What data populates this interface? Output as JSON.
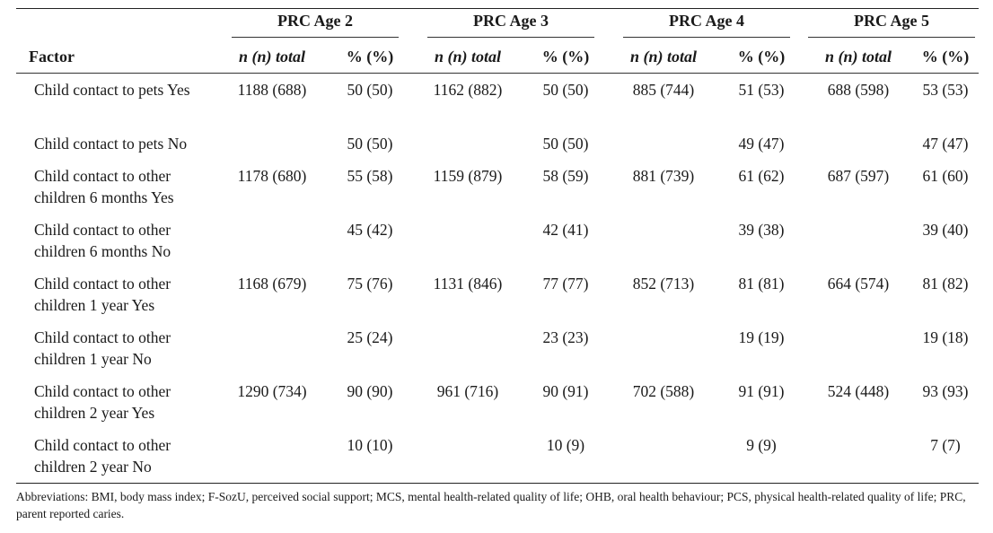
{
  "table": {
    "groups": [
      "PRC Age 2",
      "PRC Age 3",
      "PRC Age 4",
      "PRC Age 5"
    ],
    "factor_header": "Factor",
    "n_header": "n (n) total",
    "pct_header": "% (%)",
    "rows": [
      {
        "label": "Child contact to pets Yes",
        "cells": [
          "1188 (688)",
          "50 (50)",
          "1162 (882)",
          "50 (50)",
          "885 (744)",
          "51 (53)",
          "688 (598)",
          "53 (53)"
        ]
      },
      {
        "label": "Child contact to pets No",
        "cells": [
          "",
          "50 (50)",
          "",
          "50 (50)",
          "",
          "49 (47)",
          "",
          "47 (47)"
        ]
      },
      {
        "label": "Child contact to other children 6 months Yes",
        "cells": [
          "1178 (680)",
          "55 (58)",
          "1159 (879)",
          "58 (59)",
          "881 (739)",
          "61 (62)",
          "687 (597)",
          "61 (60)"
        ]
      },
      {
        "label": "Child contact to other children 6 months No",
        "cells": [
          "",
          "45 (42)",
          "",
          "42 (41)",
          "",
          "39 (38)",
          "",
          "39 (40)"
        ]
      },
      {
        "label": "Child contact to other children 1 year Yes",
        "cells": [
          "1168 (679)",
          "75 (76)",
          "1131 (846)",
          "77 (77)",
          "852 (713)",
          "81 (81)",
          "664 (574)",
          "81 (82)"
        ]
      },
      {
        "label": "Child contact to other children 1 year No",
        "cells": [
          "",
          "25 (24)",
          "",
          "23 (23)",
          "",
          "19 (19)",
          "",
          "19 (18)"
        ]
      },
      {
        "label": "Child contact to other children 2 year Yes",
        "cells": [
          "1290 (734)",
          "90 (90)",
          "961 (716)",
          "90 (91)",
          "702 (588)",
          "91 (91)",
          "524 (448)",
          "93 (93)"
        ]
      },
      {
        "label": "Child contact to other children 2 year No",
        "cells": [
          "",
          "10 (10)",
          "",
          "10 (9)",
          "",
          "9 (9)",
          "",
          "7 (7)"
        ]
      }
    ]
  },
  "footnote": "Abbreviations: BMI, body mass index; F-SozU, perceived social support; MCS, mental health-related quality of life; OHB, oral health behaviour; PCS, physical health-related quality of life; PRC, parent reported caries."
}
